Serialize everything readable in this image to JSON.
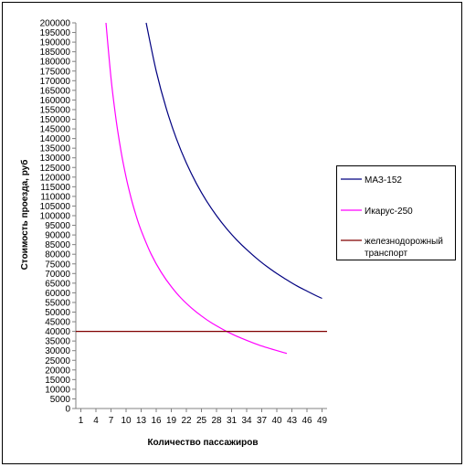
{
  "chart_data": {
    "type": "line",
    "xlabel": "Количество пассажиров",
    "ylabel": "Стоимость проезда, руб",
    "x_ticks": [
      1,
      4,
      7,
      10,
      13,
      16,
      19,
      22,
      25,
      28,
      31,
      34,
      37,
      40,
      43,
      46,
      49
    ],
    "xlim": [
      0,
      50
    ],
    "ylim": [
      0,
      200000
    ],
    "y_step": 5000,
    "grid": false,
    "legend_position": "right",
    "series": [
      {
        "name": "МАЗ-152",
        "color": "#000080",
        "x": [
          14,
          16,
          18,
          20,
          22,
          24,
          26,
          28,
          30,
          32,
          34,
          36,
          38,
          40,
          42,
          44,
          46,
          48,
          49
        ],
        "y": [
          200000,
          175000,
          155600,
          140000,
          127300,
          116700,
          107700,
          100000,
          93300,
          87500,
          82400,
          77800,
          73700,
          70000,
          66700,
          63600,
          60900,
          58300,
          57100
        ]
      },
      {
        "name": "Икарус-250",
        "color": "#FF00FF",
        "x": [
          6,
          7,
          8,
          9,
          10,
          11,
          12,
          13,
          15,
          17,
          19,
          21,
          23,
          25,
          27,
          29,
          31,
          33,
          35,
          37,
          39,
          41,
          42
        ],
        "y": [
          200000,
          171400,
          150000,
          133300,
          120000,
          109100,
          100000,
          92300,
          80000,
          70600,
          63200,
          57100,
          52200,
          48000,
          44400,
          41400,
          38700,
          36400,
          34300,
          32400,
          30800,
          29300,
          28600
        ]
      },
      {
        "name": "железнодорожный транспорт",
        "legend_lines": [
          "железнодорожный",
          "транспорт"
        ],
        "color": "#800000",
        "x": [
          0,
          50
        ],
        "y": [
          40000,
          40000
        ]
      }
    ]
  }
}
